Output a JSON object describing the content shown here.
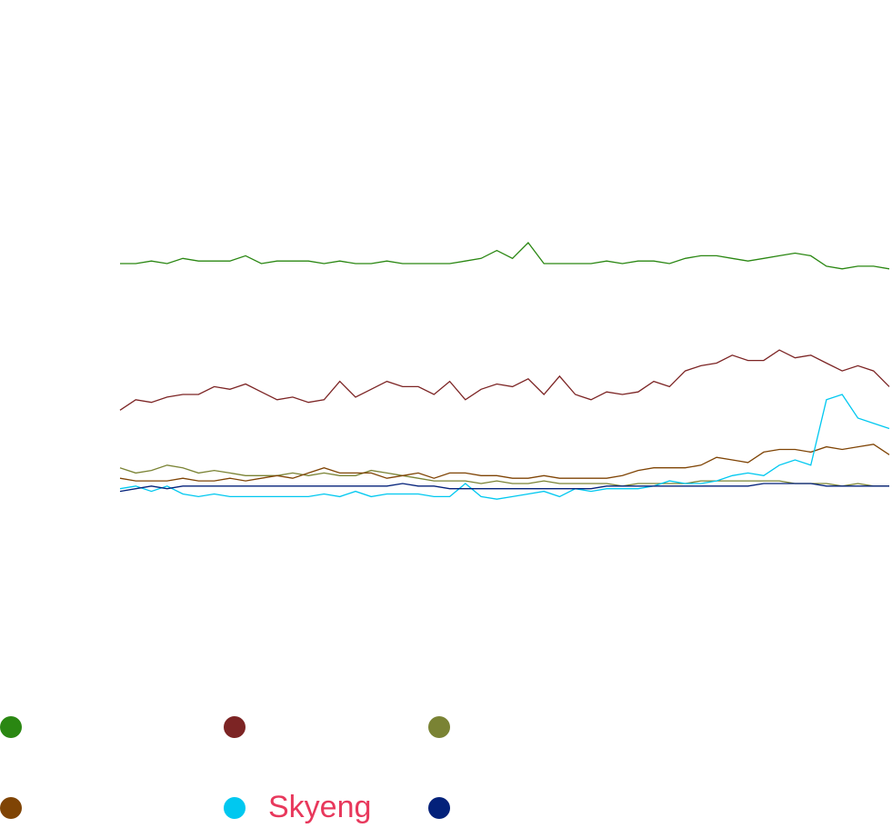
{
  "chart_data": {
    "type": "line",
    "ylim": [
      0,
      100
    ],
    "series": [
      {
        "color": "#2a8712",
        "values": [
          92,
          92,
          93,
          92,
          94,
          93,
          93,
          93,
          95,
          92,
          93,
          93,
          93,
          92,
          93,
          92,
          92,
          93,
          92,
          92,
          92,
          92,
          93,
          94,
          97,
          94,
          100,
          92,
          92,
          92,
          92,
          93,
          92,
          93,
          93,
          92,
          94,
          95,
          95,
          94,
          93,
          94,
          95,
          96,
          95,
          91,
          90,
          91,
          91,
          90
        ]
      },
      {
        "color": "#7c2424",
        "values": [
          36,
          40,
          39,
          41,
          42,
          42,
          45,
          44,
          46,
          43,
          40,
          41,
          39,
          40,
          47,
          41,
          44,
          47,
          45,
          45,
          42,
          47,
          40,
          44,
          46,
          45,
          48,
          42,
          49,
          42,
          40,
          43,
          42,
          43,
          47,
          45,
          51,
          53,
          54,
          57,
          55,
          55,
          59,
          56,
          57,
          54,
          51,
          53,
          51,
          45
        ]
      },
      {
        "color": "#7a8334",
        "values": [
          14,
          12,
          13,
          15,
          14,
          12,
          13,
          12,
          11,
          11,
          11,
          12,
          11,
          12,
          11,
          11,
          13,
          12,
          11,
          10,
          9,
          9,
          9,
          8,
          9,
          8,
          8,
          9,
          8,
          8,
          8,
          8,
          7,
          8,
          8,
          8,
          8,
          9,
          9,
          9,
          9,
          9,
          9,
          8,
          8,
          8,
          7,
          8,
          7,
          7
        ]
      },
      {
        "color": "#7f4405",
        "values": [
          10,
          9,
          9,
          9,
          10,
          9,
          9,
          10,
          9,
          10,
          11,
          10,
          12,
          14,
          12,
          12,
          12,
          10,
          11,
          12,
          10,
          12,
          12,
          11,
          11,
          10,
          10,
          11,
          10,
          10,
          10,
          10,
          11,
          13,
          14,
          14,
          14,
          15,
          18,
          17,
          16,
          20,
          21,
          21,
          20,
          22,
          21,
          22,
          23,
          19
        ]
      },
      {
        "name": "Skyeng",
        "color": "#00c8f0",
        "values": [
          6,
          7,
          5,
          7,
          4,
          3,
          4,
          3,
          3,
          3,
          3,
          3,
          3,
          4,
          3,
          5,
          3,
          4,
          4,
          4,
          3,
          3,
          8,
          3,
          2,
          3,
          4,
          5,
          3,
          6,
          5,
          6,
          6,
          6,
          7,
          9,
          8,
          8,
          9,
          11,
          12,
          11,
          15,
          17,
          15,
          40,
          42,
          33,
          31,
          29
        ]
      },
      {
        "color": "#03217a",
        "values": [
          5,
          6,
          7,
          6,
          7,
          7,
          7,
          7,
          7,
          7,
          7,
          7,
          7,
          7,
          7,
          7,
          7,
          7,
          8,
          7,
          7,
          6,
          6,
          6,
          6,
          6,
          6,
          6,
          6,
          6,
          6,
          7,
          7,
          7,
          7,
          7,
          7,
          7,
          7,
          7,
          7,
          8,
          8,
          8,
          8,
          7,
          7,
          7,
          7,
          7
        ]
      }
    ]
  }
}
